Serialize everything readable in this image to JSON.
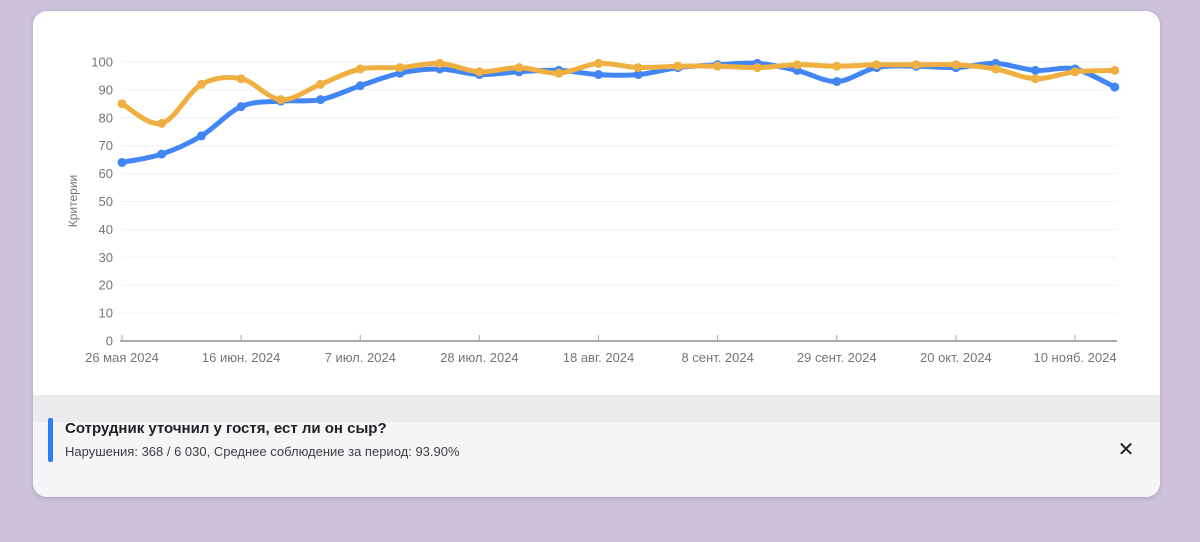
{
  "page": {
    "background_color": "#cdc2da",
    "card_color": "#ffffff"
  },
  "chart_data": {
    "type": "line",
    "title": "",
    "xlabel": "",
    "ylabel": "Критерии",
    "ylim": [
      0,
      100
    ],
    "grid": true,
    "legend": false,
    "y_ticks": [
      0,
      10,
      20,
      30,
      40,
      50,
      60,
      70,
      80,
      90,
      100
    ],
    "x_tick_indices": [
      0,
      3,
      6,
      9,
      12,
      15,
      18,
      21,
      24
    ],
    "x_tick_labels": [
      "26 мая 2024",
      "16 июн. 2024",
      "7 июл. 2024",
      "28 июл. 2024",
      "18 авг. 2024",
      "8 сент. 2024",
      "29 сент. 2024",
      "20 окт. 2024",
      "10 нояб. 2024"
    ],
    "series": [
      {
        "name": "series-1-blue",
        "color": "#4285f4",
        "values": [
          64,
          67,
          73.5,
          84,
          86,
          86.5,
          91.5,
          96,
          97.5,
          95.5,
          96.5,
          97,
          95.5,
          95.5,
          98,
          99,
          99.5,
          97,
          93,
          98,
          98.5,
          98,
          99.5,
          97,
          97.5,
          91
        ]
      },
      {
        "name": "series-2-orange",
        "color": "#efb041",
        "values": [
          85,
          78,
          92,
          94,
          86.5,
          92,
          97.5,
          98,
          99.5,
          96.5,
          98,
          96,
          99.5,
          98,
          98.5,
          98.5,
          98,
          99,
          98.5,
          99,
          99,
          99,
          97.5,
          94,
          96.5,
          97
        ]
      }
    ],
    "colors": {
      "gridline": "#eef1f5",
      "axis": "#a6a9ad",
      "tick_label": "#757575"
    }
  },
  "details_panel": {
    "title": "Сотрудник уточнил у гостя, ест ли он сыр?",
    "subtitle": "Нарушения: 368 / 6 030, Среднее соблюдение за период: 93.90%",
    "close_icon": "✕",
    "accent_color": "#2e7cf5"
  }
}
